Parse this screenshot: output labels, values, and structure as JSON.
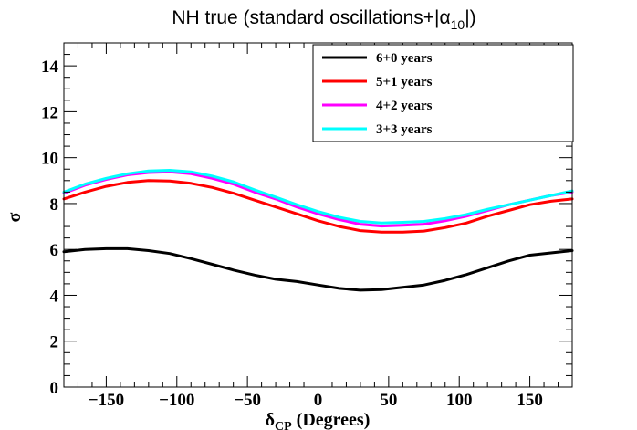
{
  "chart_data": {
    "type": "line",
    "title": {
      "prefix": "NH true (standard oscillations+|",
      "symbol": "α",
      "subscript": "10",
      "suffix": "|)"
    },
    "xlabel": {
      "symbol": "δ",
      "subscript": "CP",
      "suffix": " (Degrees)"
    },
    "ylabel": "σ",
    "xlim": [
      -180,
      180
    ],
    "ylim": [
      0,
      15
    ],
    "xticks": [
      -150,
      -100,
      -50,
      0,
      50,
      100,
      150
    ],
    "yticks": [
      0,
      2,
      4,
      6,
      8,
      10,
      12,
      14
    ],
    "x": [
      -180,
      -165,
      -150,
      -135,
      -120,
      -105,
      -90,
      -75,
      -60,
      -45,
      -30,
      -15,
      0,
      15,
      30,
      45,
      60,
      75,
      90,
      105,
      120,
      135,
      150,
      165,
      180
    ],
    "series": [
      {
        "name": "6+0 years",
        "color": "#000000",
        "values": [
          5.9,
          6.0,
          6.03,
          6.03,
          5.95,
          5.82,
          5.6,
          5.35,
          5.1,
          4.88,
          4.7,
          4.6,
          4.45,
          4.3,
          4.22,
          4.25,
          4.35,
          4.45,
          4.65,
          4.9,
          5.2,
          5.5,
          5.75,
          5.85,
          5.95
        ]
      },
      {
        "name": "5+1 years",
        "color": "#ff0000",
        "values": [
          8.2,
          8.5,
          8.75,
          8.92,
          9.0,
          8.98,
          8.88,
          8.7,
          8.45,
          8.15,
          7.85,
          7.55,
          7.25,
          7.0,
          6.82,
          6.75,
          6.75,
          6.8,
          6.95,
          7.15,
          7.45,
          7.7,
          7.95,
          8.1,
          8.2
        ]
      },
      {
        "name": "4+2 years",
        "color": "#ff00ff",
        "values": [
          8.45,
          8.8,
          9.05,
          9.25,
          9.35,
          9.38,
          9.3,
          9.1,
          8.85,
          8.5,
          8.2,
          7.85,
          7.55,
          7.3,
          7.1,
          7.02,
          7.05,
          7.1,
          7.25,
          7.45,
          7.7,
          7.95,
          8.15,
          8.35,
          8.5
        ]
      },
      {
        "name": "3+3 years",
        "color": "#00ffff",
        "values": [
          8.5,
          8.85,
          9.1,
          9.3,
          9.42,
          9.45,
          9.38,
          9.2,
          8.95,
          8.6,
          8.28,
          7.95,
          7.65,
          7.4,
          7.22,
          7.15,
          7.18,
          7.22,
          7.35,
          7.52,
          7.75,
          7.95,
          8.15,
          8.35,
          8.55
        ]
      }
    ],
    "legend_position": "top-right"
  }
}
